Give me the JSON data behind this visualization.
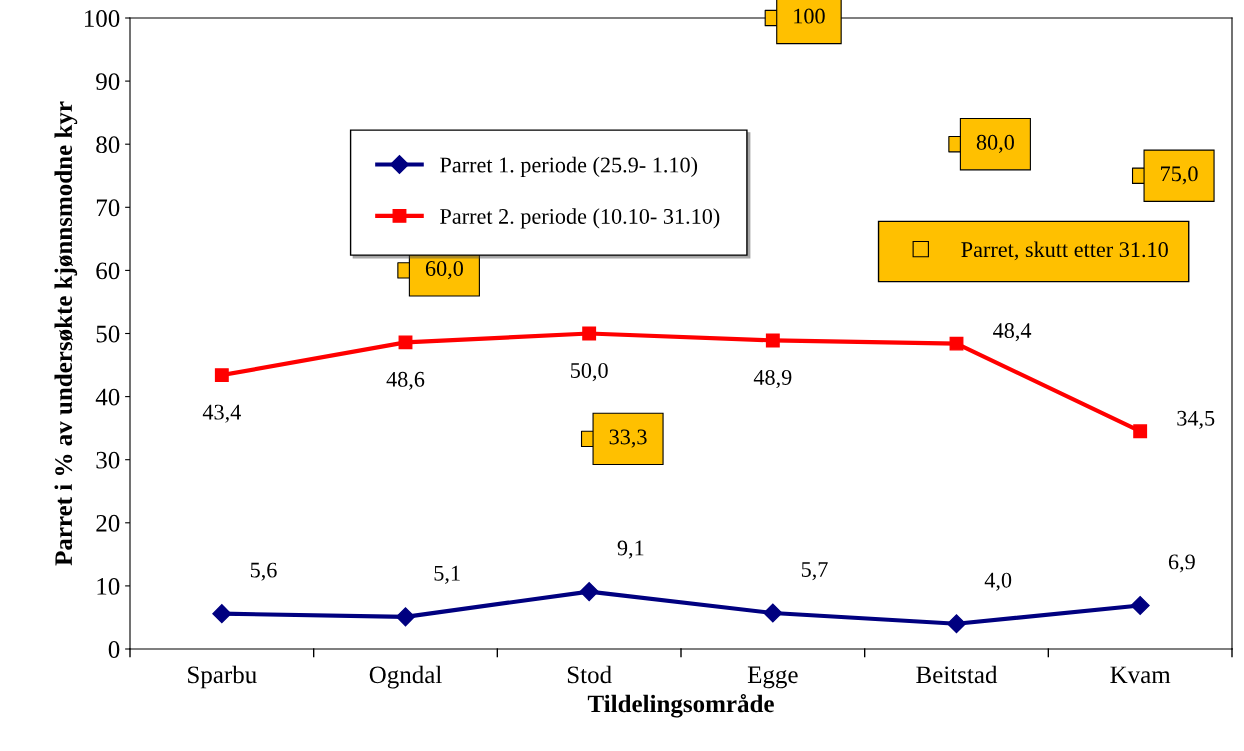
{
  "chart_data": {
    "type": "line",
    "xlabel": "Tildelingsområde",
    "ylabel": "Parret i % av undersøkte kjønnsmodne kyr",
    "categories": [
      "Sparbu",
      "Ogndal",
      "Stod",
      "Egge",
      "Beitstad",
      "Kvam"
    ],
    "series": [
      {
        "name": "Parret 1. periode (25.9- 1.10)",
        "color": "#000080",
        "values": [
          5.6,
          5.1,
          9.1,
          5.7,
          4.0,
          6.9
        ],
        "marker": "diamond",
        "value_labels": [
          "5,6",
          "5,1",
          "9,1",
          "5,7",
          "4,0",
          "6,9"
        ]
      },
      {
        "name": "Parret 2. periode (10.10- 31.10)",
        "color": "#ff0000",
        "values": [
          43.4,
          48.6,
          50.0,
          48.9,
          48.4,
          34.5
        ],
        "marker": "square",
        "value_labels": [
          "43,4",
          "48,6",
          "50,0",
          "48,9",
          "48,4",
          "34,5"
        ]
      },
      {
        "name": "Parret, skutt etter 31.10",
        "type": "scatter",
        "color": "#ffc000",
        "values": [
          null,
          60.0,
          33.3,
          100,
          80.0,
          75.0
        ],
        "marker": "square",
        "value_labels": [
          null,
          "60,0",
          "33,3",
          "100",
          "80,0",
          "75,0"
        ]
      }
    ],
    "ylim": [
      0,
      100
    ],
    "yticks": [
      0,
      10,
      20,
      30,
      40,
      50,
      60,
      70,
      80,
      90,
      100
    ],
    "grid": false,
    "legend": "top"
  }
}
